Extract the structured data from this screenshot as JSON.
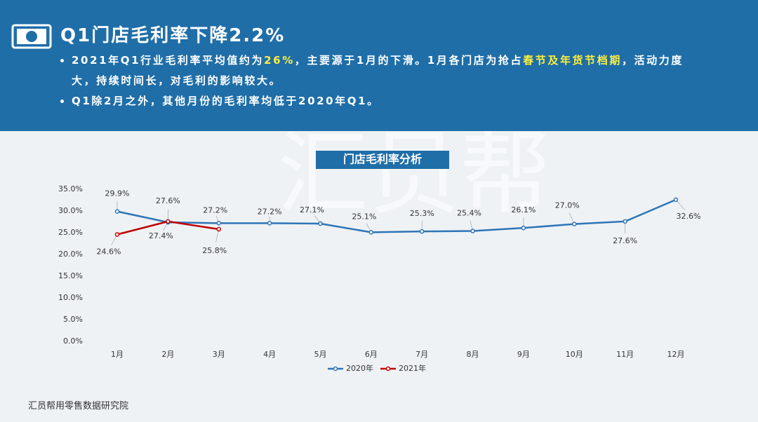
{
  "header": {
    "title": "Q1门店毛利率下降2.2%",
    "bullets": [
      [
        "2021年Q1行业毛利率平均值约为",
        "26%",
        "，主要源于1月的下滑。1月各门店为抢占",
        "春节及年货节档期",
        "，活动力度大，持续时间长，对毛利的影响较大。"
      ],
      [
        "Q1除2月之外，其他月份的毛利率均低于2020年Q1。"
      ]
    ]
  },
  "watermark": "汇员帮",
  "footer": "汇员帮用零售数据研究院",
  "chart_data": {
    "type": "line",
    "title": "门店毛利率分析",
    "categories": [
      "1月",
      "2月",
      "3月",
      "4月",
      "5月",
      "6月",
      "7月",
      "8月",
      "9月",
      "10月",
      "11月",
      "12月"
    ],
    "series": [
      {
        "name": "2020年",
        "color": "#2e75b6",
        "values": [
          29.9,
          27.4,
          27.2,
          27.2,
          27.1,
          25.1,
          25.3,
          25.4,
          26.1,
          27.0,
          27.6,
          32.6
        ],
        "value_labels": [
          "29.9%",
          "27.4%",
          "27.2%",
          "27.2%",
          "27.1%",
          "25.1%",
          "25.3%",
          "25.4%",
          "26.1%",
          "27.0%",
          "27.6%",
          "32.6%"
        ]
      },
      {
        "name": "2021年",
        "color": "#c00000",
        "values": [
          24.6,
          27.6,
          25.8,
          null,
          null,
          null,
          null,
          null,
          null,
          null,
          null,
          null
        ],
        "value_labels": [
          "24.6%",
          "27.6%",
          "25.8%",
          null,
          null,
          null,
          null,
          null,
          null,
          null,
          null,
          null
        ]
      }
    ],
    "ylim": [
      0,
      35
    ],
    "yticks": [
      {
        "value": 0,
        "label": "0.0%"
      },
      {
        "value": 5,
        "label": "5.0%"
      },
      {
        "value": 10,
        "label": "10.0%"
      },
      {
        "value": 15,
        "label": "15.0%"
      },
      {
        "value": 20,
        "label": "20.0%"
      },
      {
        "value": 25,
        "label": "25.0%"
      },
      {
        "value": 30,
        "label": "30.0%"
      },
      {
        "value": 35,
        "label": "35.0%"
      }
    ],
    "grid": false,
    "legend": "bottom"
  }
}
